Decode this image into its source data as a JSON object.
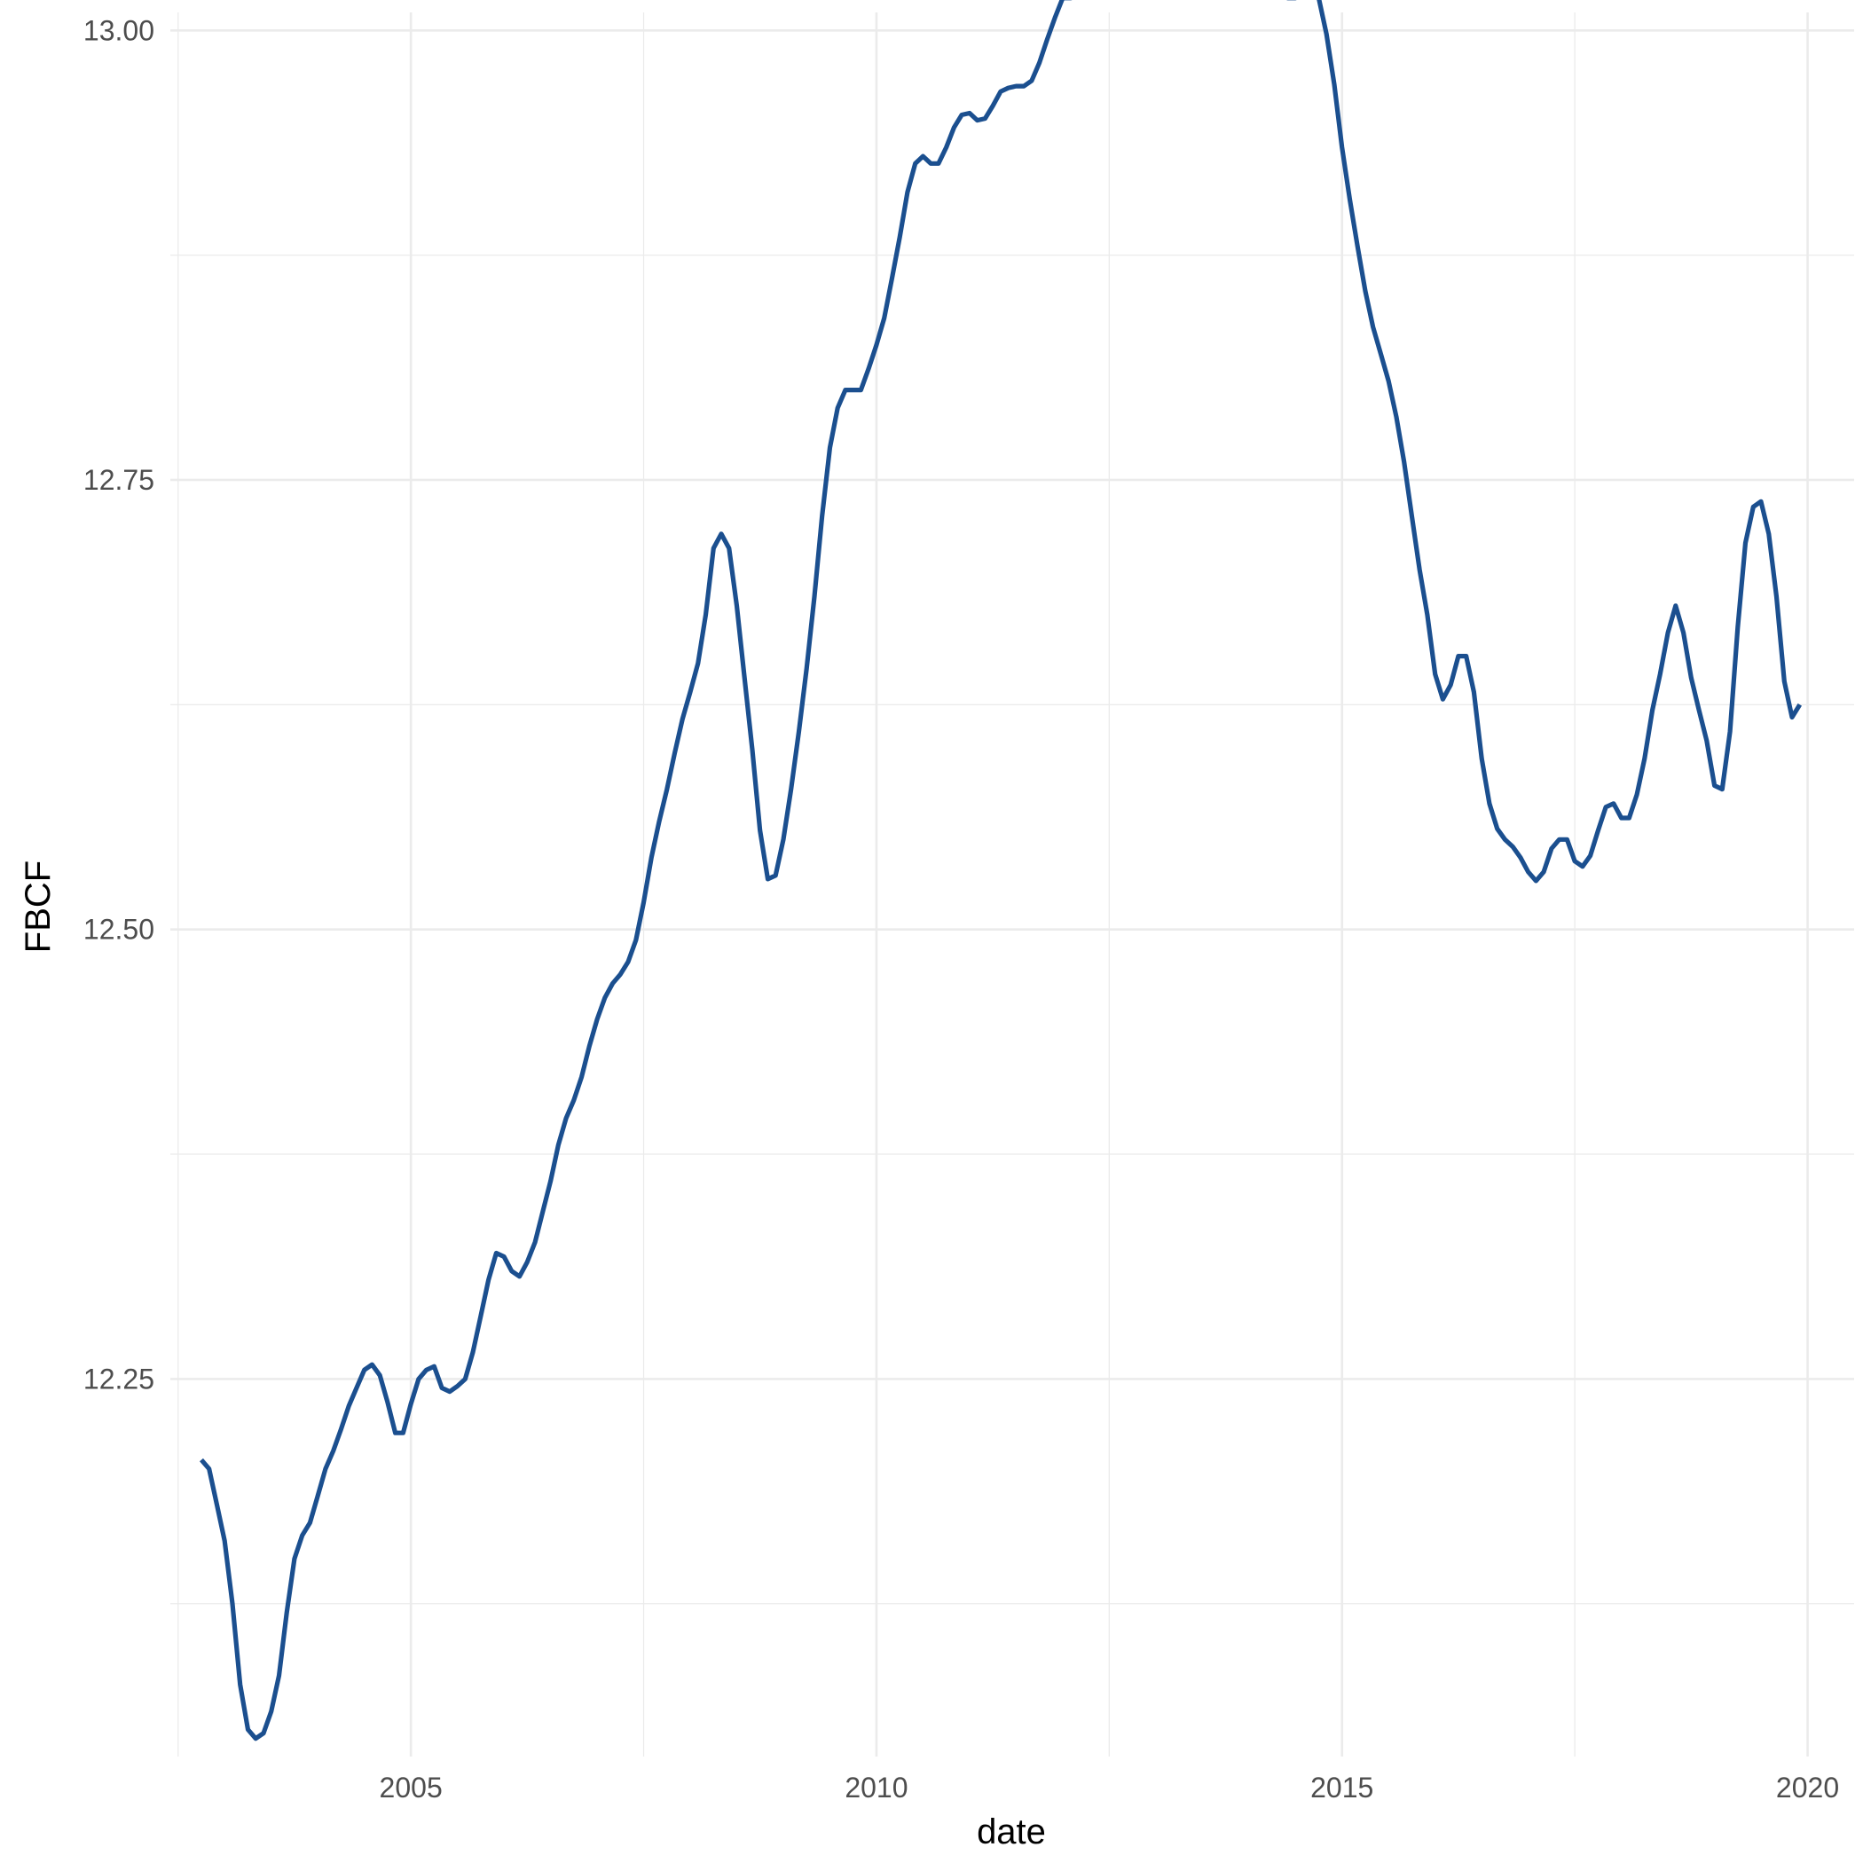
{
  "chart_data": {
    "type": "line",
    "xlabel": "date",
    "ylabel": "FBCF",
    "xlim": [
      "2002-06-01",
      "2020-07-01"
    ],
    "ylim": [
      12.04,
      13.01
    ],
    "x_ticks": [
      "2005",
      "2010",
      "2015",
      "2020"
    ],
    "y_ticks": [
      "12.25",
      "12.50",
      "12.75",
      "13.00"
    ],
    "grid": true,
    "legend": "none",
    "line_color": "#1b4f8f",
    "series": [
      {
        "x": [
          "2002-10",
          "2002-11",
          "2002-12",
          "2003-01",
          "2003-02",
          "2003-03",
          "2003-04",
          "2003-05",
          "2003-06",
          "2003-07",
          "2003-08",
          "2003-09",
          "2003-10",
          "2003-11",
          "2003-12",
          "2004-01",
          "2004-02",
          "2004-03",
          "2004-04",
          "2004-05",
          "2004-06",
          "2004-07",
          "2004-08",
          "2004-09",
          "2004-10",
          "2004-11",
          "2004-12",
          "2005-01",
          "2005-02",
          "2005-03",
          "2005-04",
          "2005-05",
          "2005-06",
          "2005-07",
          "2005-08",
          "2005-09",
          "2005-10",
          "2005-11",
          "2005-12",
          "2006-01",
          "2006-02",
          "2006-03",
          "2006-04",
          "2006-05",
          "2006-06",
          "2006-07",
          "2006-08",
          "2006-09",
          "2006-10",
          "2006-11",
          "2006-12",
          "2007-01",
          "2007-02",
          "2007-03",
          "2007-04",
          "2007-05",
          "2007-06",
          "2007-07",
          "2007-08",
          "2007-09",
          "2007-10",
          "2007-11",
          "2007-12",
          "2008-01",
          "2008-02",
          "2008-03",
          "2008-04",
          "2008-05",
          "2008-06",
          "2008-07",
          "2008-08",
          "2008-09",
          "2008-10",
          "2008-11",
          "2008-12",
          "2009-01",
          "2009-02",
          "2009-03",
          "2009-04",
          "2009-05",
          "2009-06",
          "2009-07",
          "2009-08",
          "2009-09",
          "2009-10",
          "2009-11",
          "2009-12",
          "2010-01",
          "2010-02",
          "2010-03",
          "2010-04",
          "2010-05",
          "2010-06",
          "2010-07",
          "2010-08",
          "2010-09",
          "2010-10",
          "2010-11",
          "2010-12",
          "2011-01",
          "2011-02",
          "2011-03",
          "2011-04",
          "2011-05",
          "2011-06",
          "2011-07",
          "2011-08",
          "2011-09",
          "2011-10",
          "2011-11",
          "2011-12",
          "2012-01",
          "2012-02",
          "2012-03",
          "2012-04",
          "2012-05",
          "2012-06",
          "2012-07",
          "2012-08",
          "2012-09",
          "2012-10",
          "2012-11",
          "2012-12",
          "2013-01",
          "2013-02",
          "2013-03",
          "2013-04",
          "2013-05",
          "2013-06",
          "2013-07",
          "2013-08",
          "2013-09",
          "2013-10",
          "2013-11",
          "2013-12",
          "2014-01",
          "2014-02",
          "2014-03",
          "2014-04",
          "2014-05",
          "2014-06",
          "2014-07",
          "2014-08",
          "2014-09",
          "2014-10",
          "2014-11",
          "2014-12",
          "2015-01",
          "2015-02",
          "2015-03",
          "2015-04",
          "2015-05",
          "2015-06",
          "2015-07",
          "2015-08",
          "2015-09",
          "2015-10",
          "2015-11",
          "2015-12",
          "2016-01",
          "2016-02",
          "2016-03",
          "2016-04",
          "2016-05",
          "2016-06",
          "2016-07",
          "2016-08",
          "2016-09",
          "2016-10",
          "2016-11",
          "2016-12",
          "2017-01",
          "2017-02",
          "2017-03",
          "2017-04",
          "2017-05",
          "2017-06",
          "2017-07",
          "2017-08",
          "2017-09",
          "2017-10",
          "2017-11",
          "2017-12",
          "2018-01",
          "2018-02",
          "2018-03",
          "2018-04",
          "2018-05",
          "2018-06",
          "2018-07",
          "2018-08",
          "2018-09",
          "2018-10",
          "2018-11",
          "2018-12",
          "2019-01",
          "2019-02",
          "2019-03",
          "2019-04",
          "2019-05",
          "2019-06",
          "2019-07",
          "2019-08",
          "2019-09",
          "2019-10",
          "2019-11",
          "2019-12"
        ],
        "y": [
          12.205,
          12.2,
          12.18,
          12.16,
          12.125,
          12.08,
          12.055,
          12.05,
          12.053,
          12.065,
          12.085,
          12.12,
          12.15,
          12.163,
          12.17,
          12.185,
          12.2,
          12.21,
          12.222,
          12.235,
          12.245,
          12.255,
          12.258,
          12.252,
          12.237,
          12.22,
          12.22,
          12.236,
          12.25,
          12.255,
          12.257,
          12.245,
          12.243,
          12.246,
          12.25,
          12.265,
          12.285,
          12.305,
          12.32,
          12.318,
          12.31,
          12.307,
          12.315,
          12.326,
          12.343,
          12.36,
          12.38,
          12.395,
          12.405,
          12.418,
          12.435,
          12.45,
          12.462,
          12.47,
          12.475,
          12.482,
          12.494,
          12.515,
          12.54,
          12.56,
          12.578,
          12.598,
          12.617,
          12.632,
          12.648,
          12.675,
          12.712,
          12.72,
          12.712,
          12.68,
          12.64,
          12.6,
          12.555,
          12.528,
          12.53,
          12.55,
          12.578,
          12.61,
          12.645,
          12.685,
          12.73,
          12.768,
          12.79,
          12.8,
          12.8,
          12.8,
          12.812,
          12.825,
          12.84,
          12.862,
          12.885,
          12.91,
          12.926,
          12.93,
          12.926,
          12.926,
          12.935,
          12.946,
          12.953,
          12.954,
          12.95,
          12.951,
          12.958,
          12.966,
          12.968,
          12.969,
          12.969,
          12.972,
          12.982,
          12.995,
          13.007,
          13.018,
          13.018,
          13.019,
          13.022,
          13.022,
          13.025,
          13.03,
          13.04,
          13.045,
          13.042,
          13.033,
          13.037,
          13.06,
          13.09,
          13.11,
          13.113,
          13.108,
          13.1,
          13.095,
          13.092,
          13.095,
          13.1,
          13.11,
          13.11,
          13.092,
          13.068,
          13.048,
          13.03,
          13.022,
          13.018,
          13.018,
          13.025,
          13.027,
          13.018,
          12.998,
          12.97,
          12.935,
          12.906,
          12.88,
          12.855,
          12.835,
          12.82,
          12.805,
          12.785,
          12.76,
          12.73,
          12.7,
          12.675,
          12.642,
          12.628,
          12.636,
          12.652,
          12.652,
          12.632,
          12.595,
          12.57,
          12.556,
          12.55,
          12.546,
          12.54,
          12.532,
          12.527,
          12.532,
          12.545,
          12.55,
          12.55,
          12.538,
          12.535,
          12.541,
          12.555,
          12.568,
          12.57,
          12.562,
          12.562,
          12.575,
          12.595,
          12.622,
          12.642,
          12.665,
          12.68,
          12.665,
          12.64,
          12.622,
          12.605,
          12.58,
          12.578,
          12.61,
          12.668,
          12.715,
          12.735,
          12.738,
          12.72,
          12.685,
          12.638,
          12.618,
          12.625
        ]
      }
    ]
  }
}
